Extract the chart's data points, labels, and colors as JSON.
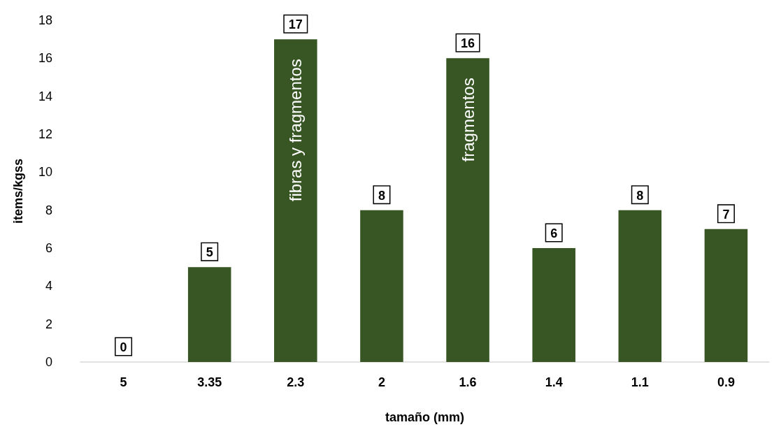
{
  "chart_data": {
    "type": "bar",
    "xlabel": "tamaño (mm)",
    "ylabel": "items/kgss",
    "categories": [
      "5",
      "3.35",
      "2.3",
      "2",
      "1.6",
      "1.4",
      "1.1",
      "0.9"
    ],
    "values": [
      0,
      5,
      17,
      8,
      16,
      6,
      8,
      7
    ],
    "color": "#375623",
    "ylim": [
      0,
      18
    ],
    "yticks": [
      0,
      2,
      4,
      6,
      8,
      10,
      12,
      14,
      16,
      18
    ],
    "grid": false,
    "data_labels": true,
    "annotations": [
      "fibras y fragmentos",
      "fragmentos"
    ]
  }
}
